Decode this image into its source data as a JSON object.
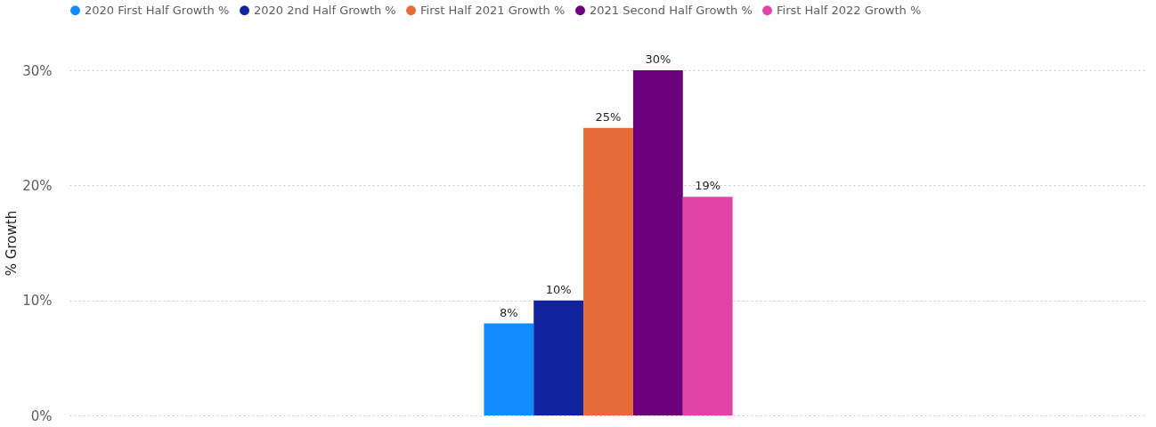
{
  "chart_data": {
    "type": "bar",
    "ylabel": "% Growth",
    "categories": [
      null
    ],
    "series": [
      {
        "name": "2020 First Half Growth %",
        "color": "#118dff",
        "values": [
          8
        ],
        "value_labels": [
          "8%"
        ]
      },
      {
        "name": "2020 2nd Half Growth %",
        "color": "#12239e",
        "values": [
          10
        ],
        "value_labels": [
          "10%"
        ]
      },
      {
        "name": "First Half 2021 Growth %",
        "color": "#e66c37",
        "values": [
          25
        ],
        "value_labels": [
          "25%"
        ]
      },
      {
        "name": "2021 Second Half Growth %",
        "color": "#6b007b",
        "values": [
          30
        ],
        "value_labels": [
          "30%"
        ]
      },
      {
        "name": "First Half 2022 Growth %",
        "color": "#e044a7",
        "values": [
          19
        ],
        "value_labels": [
          "19%"
        ]
      }
    ],
    "ylim": [
      0,
      30
    ],
    "yticks": [
      {
        "value": 0,
        "label": "0%"
      },
      {
        "value": 10,
        "label": "10%"
      },
      {
        "value": 20,
        "label": "20%"
      },
      {
        "value": 30,
        "label": "30%"
      }
    ],
    "grid": "y",
    "legend": "top",
    "tick_labels": "y"
  }
}
